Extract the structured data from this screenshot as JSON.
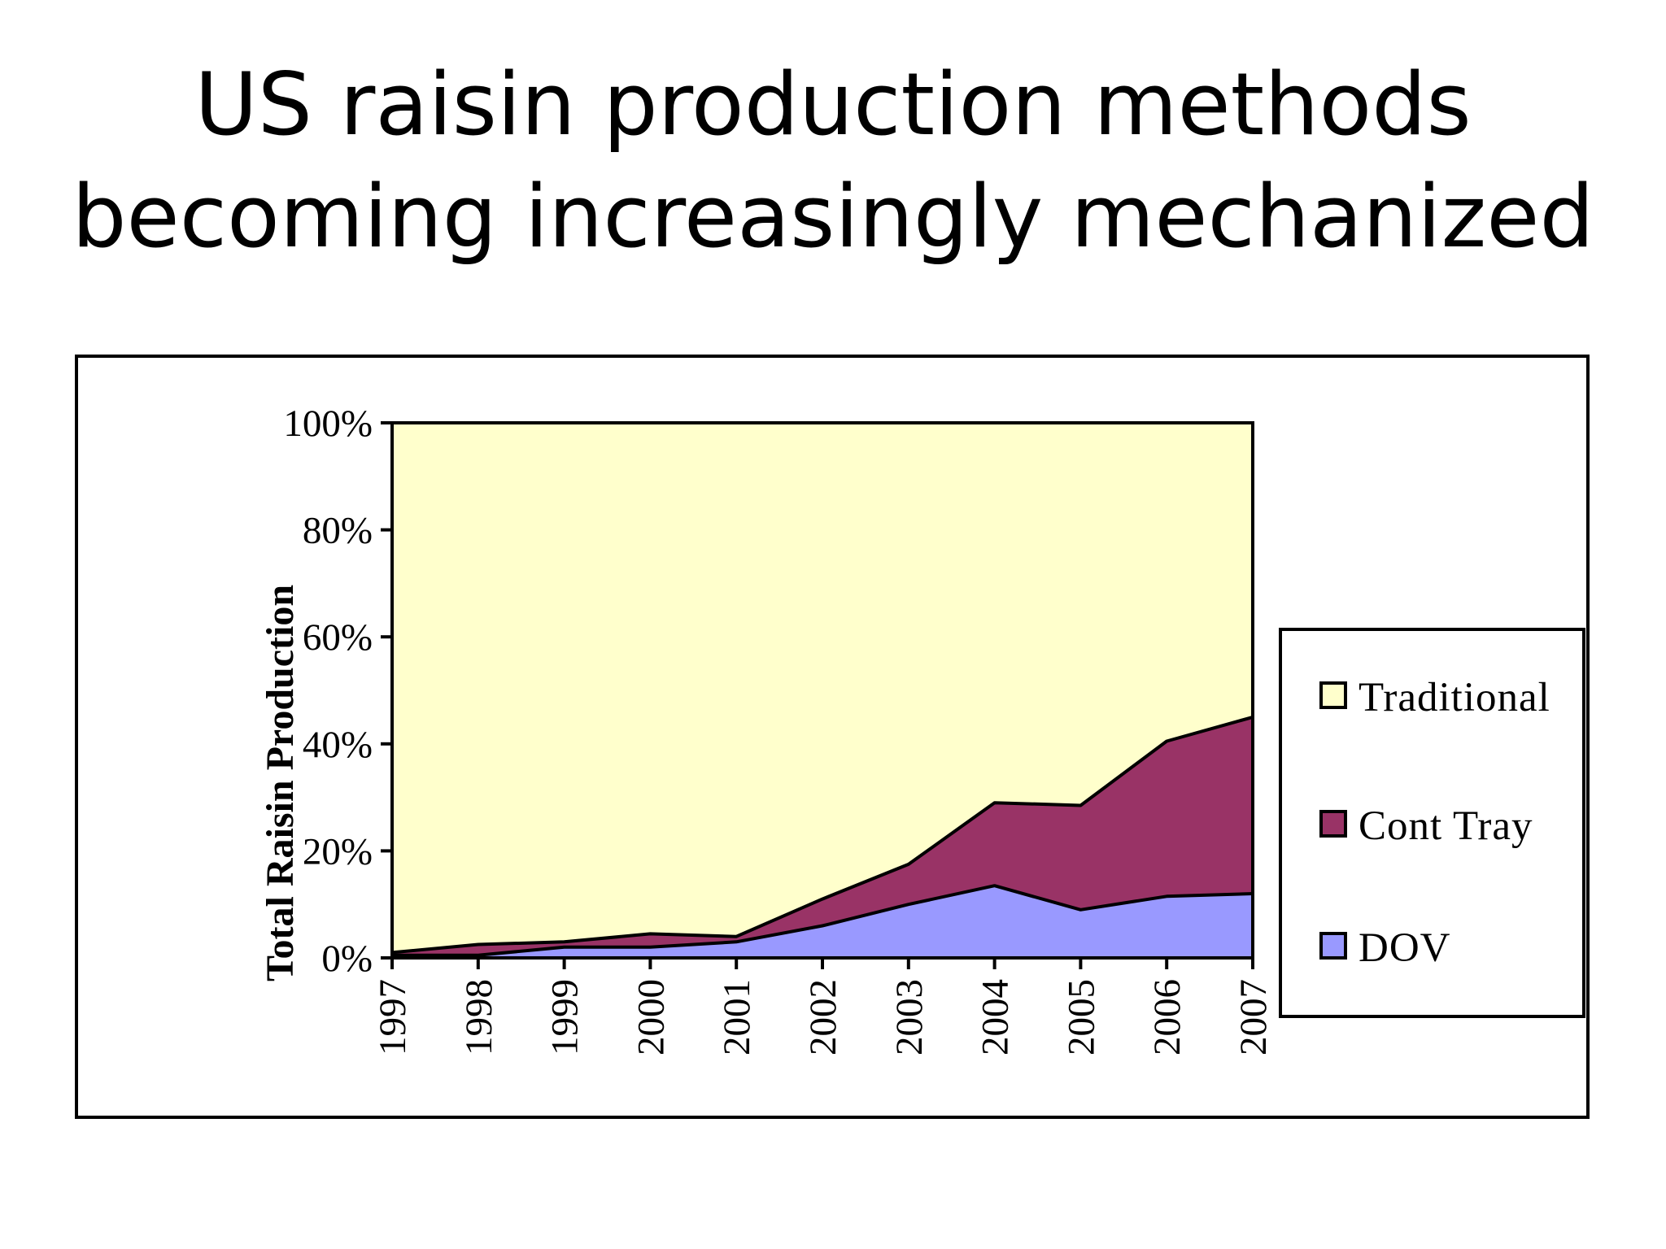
{
  "slide": {
    "title_line1": "US raisin production methods",
    "title_line2": "becoming increasingly mechanized"
  },
  "chart_data": {
    "type": "area",
    "stacked": true,
    "percent_stacked": true,
    "categories": [
      "1997",
      "1998",
      "1999",
      "2000",
      "2001",
      "2002",
      "2003",
      "2004",
      "2005",
      "2006",
      "2007"
    ],
    "series": [
      {
        "name": "DOV",
        "color": "#9999ff",
        "values": [
          0.5,
          0.5,
          2,
          2,
          3,
          6,
          10,
          13.5,
          9,
          11.5,
          12
        ]
      },
      {
        "name": "Cont Tray",
        "color": "#993366",
        "values": [
          0.5,
          2,
          1,
          2.5,
          1,
          5,
          7.5,
          15.5,
          19.5,
          29,
          33
        ]
      },
      {
        "name": "Traditional",
        "color": "#ffffcc",
        "values": [
          99,
          97.5,
          97,
          95.5,
          96,
          89,
          82.5,
          71,
          71.5,
          59.5,
          55
        ]
      }
    ],
    "ylabel": "Total Raisin Production",
    "xlabel": "",
    "ylim": [
      0,
      100
    ],
    "y_ticks": [
      "0%",
      "20%",
      "40%",
      "60%",
      "80%",
      "100%"
    ],
    "legend_position": "right",
    "legend_order": [
      "Traditional",
      "Cont Tray",
      "DOV"
    ],
    "grid": false
  }
}
